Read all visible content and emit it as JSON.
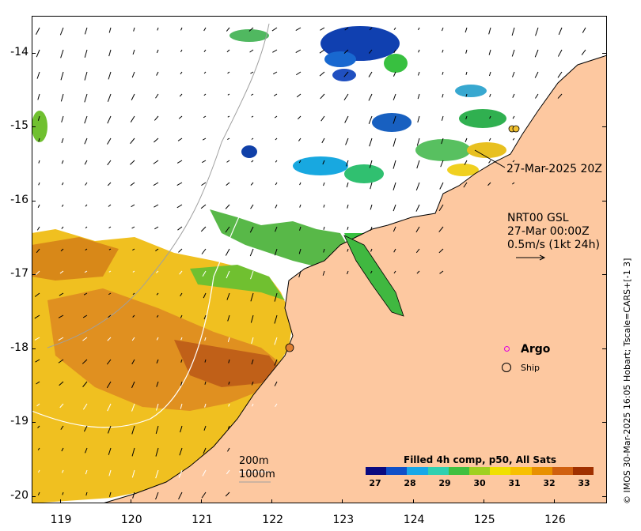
{
  "map": {
    "x_ticks": [
      "119",
      "120",
      "121",
      "122",
      "123",
      "124",
      "125",
      "126"
    ],
    "y_ticks": [
      "-14",
      "-15",
      "-16",
      "-17",
      "-18",
      "-19",
      "-20"
    ],
    "lon_range": [
      118.6,
      126.75
    ],
    "lat_range": [
      -20.1,
      -13.5
    ]
  },
  "annotations": {
    "time_label": "27-Mar-2025 20Z",
    "product": "NRT00 GSL",
    "date": "27-Mar 00:00Z",
    "scale_arrow": "0.5m/s (1kt 24h)",
    "contour_200": "200m",
    "contour_1000": "1000m"
  },
  "legend": {
    "argo": "Argo",
    "ship": "Ship",
    "argo_color": "#e000e0",
    "ship_color": "#000000"
  },
  "colorbar": {
    "title": "Filled 4h comp, p50, All Sats",
    "ticks": [
      "27",
      "28",
      "29",
      "30",
      "31",
      "32",
      "33"
    ],
    "colors": [
      "#0a0a80",
      "#1050c8",
      "#18a8e8",
      "#30d0b0",
      "#40c040",
      "#a0d020",
      "#f0e000",
      "#f8c000",
      "#e89000",
      "#d06010",
      "#a03000"
    ]
  },
  "credit": "© IMOS 30-Mar-2025 16:05 Hobart; Tscale=CARS+[-1 3]",
  "colors": {
    "land": "#fdc8a0",
    "ocean_nodata": "#ffffff"
  }
}
